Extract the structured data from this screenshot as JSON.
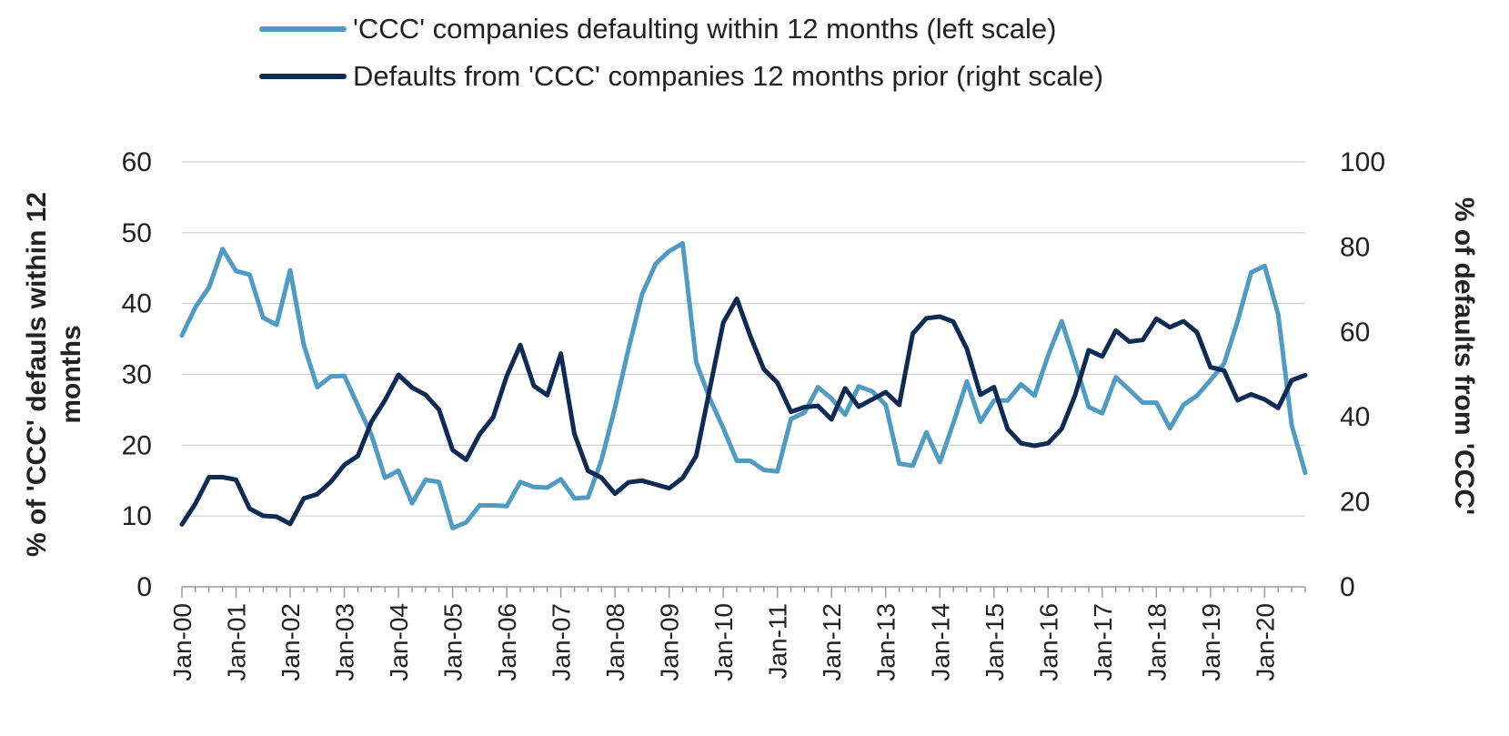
{
  "chart_data": {
    "type": "line",
    "grid": true,
    "legend_position": "top-center",
    "x_tick_labels": [
      "Jan-00",
      "Jan-01",
      "Jan-02",
      "Jan-03",
      "Jan-04",
      "Jan-05",
      "Jan-06",
      "Jan-07",
      "Jan-08",
      "Jan-09",
      "Jan-10",
      "Jan-11",
      "Jan-12",
      "Jan-13",
      "Jan-14",
      "Jan-15",
      "Jan-16",
      "Jan-17",
      "Jan-18",
      "Jan-19",
      "Jan-20"
    ],
    "y_left": {
      "label": "% of 'CCC' defauls within 12 months",
      "range": [
        0,
        60
      ],
      "ticks": [
        "0",
        "10",
        "20",
        "30",
        "40",
        "50",
        "60"
      ]
    },
    "y_right": {
      "label": "% of defaults from 'CCC'",
      "range": [
        0,
        100
      ],
      "ticks": [
        "0",
        "20",
        "40",
        "60",
        "80",
        "100"
      ]
    },
    "x_range": [
      2000.0,
      2020.75
    ],
    "series": [
      {
        "name": "'CCC' companies defaulting within 12 months (left scale)",
        "axis": "left",
        "color": "#4f9bc4",
        "points": [
          [
            2000.0,
            35.5
          ],
          [
            2000.25,
            39.5
          ],
          [
            2000.5,
            42.3
          ],
          [
            2000.75,
            47.7
          ],
          [
            2001.0,
            44.6
          ],
          [
            2001.25,
            44.1
          ],
          [
            2001.5,
            38.0
          ],
          [
            2001.75,
            37.0
          ],
          [
            2002.0,
            44.7
          ],
          [
            2002.25,
            34.2
          ],
          [
            2002.5,
            28.2
          ],
          [
            2002.75,
            29.7
          ],
          [
            2003.0,
            29.8
          ],
          [
            2003.25,
            25.6
          ],
          [
            2003.5,
            21.5
          ],
          [
            2003.75,
            15.4
          ],
          [
            2004.0,
            16.4
          ],
          [
            2004.25,
            11.8
          ],
          [
            2004.5,
            15.1
          ],
          [
            2004.75,
            14.8
          ],
          [
            2005.0,
            8.3
          ],
          [
            2005.25,
            9.1
          ],
          [
            2005.5,
            11.5
          ],
          [
            2005.75,
            11.5
          ],
          [
            2006.0,
            11.4
          ],
          [
            2006.25,
            14.8
          ],
          [
            2006.5,
            14.1
          ],
          [
            2006.75,
            14.0
          ],
          [
            2007.0,
            15.2
          ],
          [
            2007.25,
            12.5
          ],
          [
            2007.5,
            12.6
          ],
          [
            2007.75,
            17.9
          ],
          [
            2008.0,
            25.3
          ],
          [
            2008.25,
            33.6
          ],
          [
            2008.5,
            41.3
          ],
          [
            2008.75,
            45.6
          ],
          [
            2009.0,
            47.4
          ],
          [
            2009.25,
            48.5
          ],
          [
            2009.5,
            31.7
          ],
          [
            2009.75,
            26.6
          ],
          [
            2010.0,
            22.4
          ],
          [
            2010.25,
            17.8
          ],
          [
            2010.5,
            17.8
          ],
          [
            2010.75,
            16.5
          ],
          [
            2011.0,
            16.3
          ],
          [
            2011.25,
            23.7
          ],
          [
            2011.5,
            24.6
          ],
          [
            2011.75,
            28.2
          ],
          [
            2012.0,
            26.6
          ],
          [
            2012.25,
            24.3
          ],
          [
            2012.5,
            28.3
          ],
          [
            2012.75,
            27.6
          ],
          [
            2013.0,
            25.7
          ],
          [
            2013.25,
            17.4
          ],
          [
            2013.5,
            17.1
          ],
          [
            2013.75,
            21.8
          ],
          [
            2014.0,
            17.6
          ],
          [
            2014.25,
            23.1
          ],
          [
            2014.5,
            29.0
          ],
          [
            2014.75,
            23.3
          ],
          [
            2015.0,
            26.3
          ],
          [
            2015.25,
            26.3
          ],
          [
            2015.5,
            28.6
          ],
          [
            2015.75,
            27.0
          ],
          [
            2016.0,
            32.7
          ],
          [
            2016.25,
            37.5
          ],
          [
            2016.5,
            31.6
          ],
          [
            2016.75,
            25.4
          ],
          [
            2017.0,
            24.5
          ],
          [
            2017.25,
            29.6
          ],
          [
            2017.5,
            27.8
          ],
          [
            2017.75,
            26.0
          ],
          [
            2018.0,
            26.0
          ],
          [
            2018.25,
            22.4
          ],
          [
            2018.5,
            25.7
          ],
          [
            2018.75,
            27.0
          ],
          [
            2019.0,
            29.2
          ],
          [
            2019.25,
            31.5
          ],
          [
            2019.5,
            37.5
          ],
          [
            2019.75,
            44.4
          ],
          [
            2020.0,
            45.3
          ],
          [
            2020.25,
            38.5
          ],
          [
            2020.5,
            22.8
          ],
          [
            2020.75,
            16.1
          ]
        ]
      },
      {
        "name": "Defaults from 'CCC' companies 12 months prior (right scale)",
        "axis": "right",
        "color": "#0d2b55",
        "points": [
          [
            2000.0,
            14.7
          ],
          [
            2000.25,
            19.6
          ],
          [
            2000.5,
            25.8
          ],
          [
            2000.75,
            25.8
          ],
          [
            2001.0,
            25.2
          ],
          [
            2001.25,
            18.4
          ],
          [
            2001.5,
            16.7
          ],
          [
            2001.75,
            16.5
          ],
          [
            2002.0,
            14.8
          ],
          [
            2002.25,
            20.8
          ],
          [
            2002.5,
            21.8
          ],
          [
            2002.75,
            24.7
          ],
          [
            2003.0,
            28.7
          ],
          [
            2003.25,
            30.8
          ],
          [
            2003.5,
            38.8
          ],
          [
            2003.75,
            43.9
          ],
          [
            2004.0,
            49.9
          ],
          [
            2004.25,
            46.9
          ],
          [
            2004.5,
            45.2
          ],
          [
            2004.75,
            41.7
          ],
          [
            2005.0,
            32.2
          ],
          [
            2005.25,
            29.9
          ],
          [
            2005.5,
            35.9
          ],
          [
            2005.75,
            39.9
          ],
          [
            2006.0,
            49.6
          ],
          [
            2006.25,
            56.9
          ],
          [
            2006.5,
            47.3
          ],
          [
            2006.75,
            45.1
          ],
          [
            2007.0,
            54.9
          ],
          [
            2007.25,
            36.0
          ],
          [
            2007.5,
            27.3
          ],
          [
            2007.75,
            25.7
          ],
          [
            2008.0,
            21.9
          ],
          [
            2008.25,
            24.6
          ],
          [
            2008.5,
            25.0
          ],
          [
            2008.75,
            24.1
          ],
          [
            2009.0,
            23.2
          ],
          [
            2009.25,
            25.6
          ],
          [
            2009.5,
            30.8
          ],
          [
            2009.75,
            46.5
          ],
          [
            2010.0,
            62.2
          ],
          [
            2010.25,
            67.8
          ],
          [
            2010.5,
            59.0
          ],
          [
            2010.75,
            51.2
          ],
          [
            2011.0,
            48.0
          ],
          [
            2011.25,
            41.2
          ],
          [
            2011.5,
            42.3
          ],
          [
            2011.75,
            42.6
          ],
          [
            2012.0,
            39.4
          ],
          [
            2012.25,
            46.7
          ],
          [
            2012.5,
            42.4
          ],
          [
            2012.75,
            44.1
          ],
          [
            2013.0,
            45.8
          ],
          [
            2013.25,
            42.8
          ],
          [
            2013.5,
            59.6
          ],
          [
            2013.75,
            63.2
          ],
          [
            2014.0,
            63.6
          ],
          [
            2014.25,
            62.4
          ],
          [
            2014.5,
            56.0
          ],
          [
            2014.75,
            45.2
          ],
          [
            2015.0,
            47.0
          ],
          [
            2015.25,
            37.2
          ],
          [
            2015.5,
            33.8
          ],
          [
            2015.75,
            33.2
          ],
          [
            2016.0,
            33.8
          ],
          [
            2016.25,
            37.2
          ],
          [
            2016.5,
            45.1
          ],
          [
            2016.75,
            55.7
          ],
          [
            2017.0,
            54.2
          ],
          [
            2017.25,
            60.3
          ],
          [
            2017.5,
            57.7
          ],
          [
            2017.75,
            58.1
          ],
          [
            2018.0,
            63.1
          ],
          [
            2018.25,
            61.1
          ],
          [
            2018.5,
            62.5
          ],
          [
            2018.75,
            59.9
          ],
          [
            2019.0,
            51.7
          ],
          [
            2019.25,
            50.9
          ],
          [
            2019.5,
            43.9
          ],
          [
            2019.75,
            45.3
          ],
          [
            2020.0,
            44.1
          ],
          [
            2020.25,
            42.1
          ],
          [
            2020.5,
            48.6
          ],
          [
            2020.75,
            49.8
          ]
        ]
      }
    ]
  }
}
